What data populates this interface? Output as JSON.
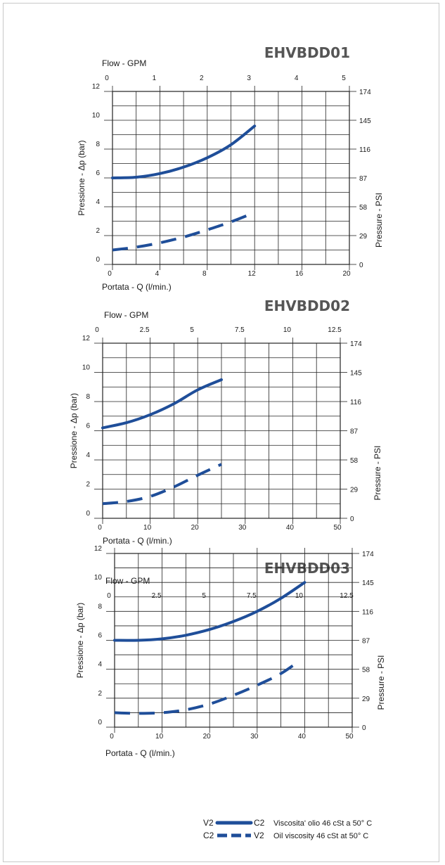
{
  "colors": {
    "curve": "#1f4e99",
    "grid": "#222222",
    "frame": "#c8c8c8",
    "title": "#555555"
  },
  "legend": {
    "solid": {
      "left": "V2",
      "right": "C2",
      "text": "Viscosita' olio 46 cSt a 50° C"
    },
    "dashed": {
      "left": "C2",
      "right": "V2",
      "text": "Oil viscosity 46 cSt at 50° C"
    }
  },
  "chart_data": [
    {
      "type": "line",
      "title": "EHVBDD01",
      "xlabel": "Portata - Q (l/min.)",
      "ylabel": "Pressione -   Δp (bar)",
      "x2label": "Flow - GPM",
      "y2label": "Pressure - PSI",
      "x_ticks": [
        "0",
        "4",
        "8",
        "12",
        "16",
        "20"
      ],
      "x2_ticks": [
        "0",
        "1",
        "2",
        "3",
        "4",
        "5"
      ],
      "y_ticks": [
        "0",
        "2",
        "4",
        "6",
        "8",
        "10",
        "12"
      ],
      "y2_ticks": [
        "0",
        "29",
        "58",
        "87",
        "116",
        "145",
        "174"
      ],
      "xlim": [
        0,
        20
      ],
      "ylim": [
        0,
        12
      ],
      "grid": true,
      "series": [
        {
          "name": "V2-C2",
          "style": "solid",
          "x": [
            0,
            2,
            4,
            6,
            8,
            10,
            12
          ],
          "y": [
            6.0,
            6.05,
            6.3,
            6.75,
            7.4,
            8.3,
            9.6
          ]
        },
        {
          "name": "C2-V2",
          "style": "dashed",
          "x": [
            0,
            2,
            4,
            6,
            8,
            10,
            12
          ],
          "y": [
            1.0,
            1.2,
            1.5,
            1.9,
            2.4,
            2.95,
            3.6
          ]
        }
      ]
    },
    {
      "type": "line",
      "title": "EHVBDD02",
      "xlabel": "Portata - Q (l/min.)",
      "ylabel": "Pressione -   Δp (bar)",
      "x2label": "Flow - GPM",
      "y2label": "Pressure - PSI",
      "x_ticks": [
        "0",
        "10",
        "20",
        "30",
        "40",
        "50"
      ],
      "x2_ticks": [
        "0",
        "2.5",
        "5",
        "7.5",
        "10",
        "12.5"
      ],
      "y_ticks": [
        "0",
        "2",
        "4",
        "6",
        "8",
        "10",
        "12"
      ],
      "y2_ticks": [
        "0",
        "29",
        "58",
        "87",
        "116",
        "145",
        "174"
      ],
      "xlim": [
        0,
        50
      ],
      "ylim": [
        0,
        12
      ],
      "grid": true,
      "series": [
        {
          "name": "V2-C2",
          "style": "solid",
          "x": [
            0,
            5,
            10,
            15,
            20,
            25
          ],
          "y": [
            6.2,
            6.55,
            7.1,
            7.85,
            8.8,
            9.5
          ]
        },
        {
          "name": "C2-V2",
          "style": "dashed",
          "x": [
            0,
            5,
            10,
            15,
            20,
            25
          ],
          "y": [
            1.0,
            1.15,
            1.5,
            2.15,
            2.95,
            3.7
          ]
        }
      ]
    },
    {
      "type": "line",
      "title": "EHVBDD03",
      "xlabel": "Portata - Q (l/min.)",
      "ylabel": "Pressione -   Δp (bar)",
      "x2label": "Flow - GPM",
      "y2label": "Pressure - PSI",
      "x_ticks": [
        "0",
        "10",
        "20",
        "30",
        "40",
        "50"
      ],
      "x2_ticks": [
        "0",
        "2.5",
        "5",
        "7.5",
        "10",
        "12.5"
      ],
      "y_ticks": [
        "0",
        "2",
        "4",
        "6",
        "8",
        "10",
        "12"
      ],
      "y2_ticks": [
        "0",
        "29",
        "58",
        "87",
        "116",
        "145",
        "174"
      ],
      "xlim": [
        0,
        50
      ],
      "ylim": [
        0,
        12
      ],
      "grid": true,
      "series": [
        {
          "name": "V2-C2",
          "style": "solid",
          "x": [
            0,
            5,
            10,
            15,
            20,
            25,
            30,
            35,
            40
          ],
          "y": [
            6.0,
            6.0,
            6.1,
            6.35,
            6.75,
            7.3,
            8.0,
            8.9,
            10.0
          ]
        },
        {
          "name": "C2-V2",
          "style": "dashed",
          "x": [
            0,
            5,
            10,
            15,
            20,
            25,
            30,
            35,
            39
          ],
          "y": [
            1.0,
            0.95,
            1.0,
            1.2,
            1.6,
            2.2,
            2.9,
            3.7,
            4.6
          ]
        }
      ]
    }
  ]
}
